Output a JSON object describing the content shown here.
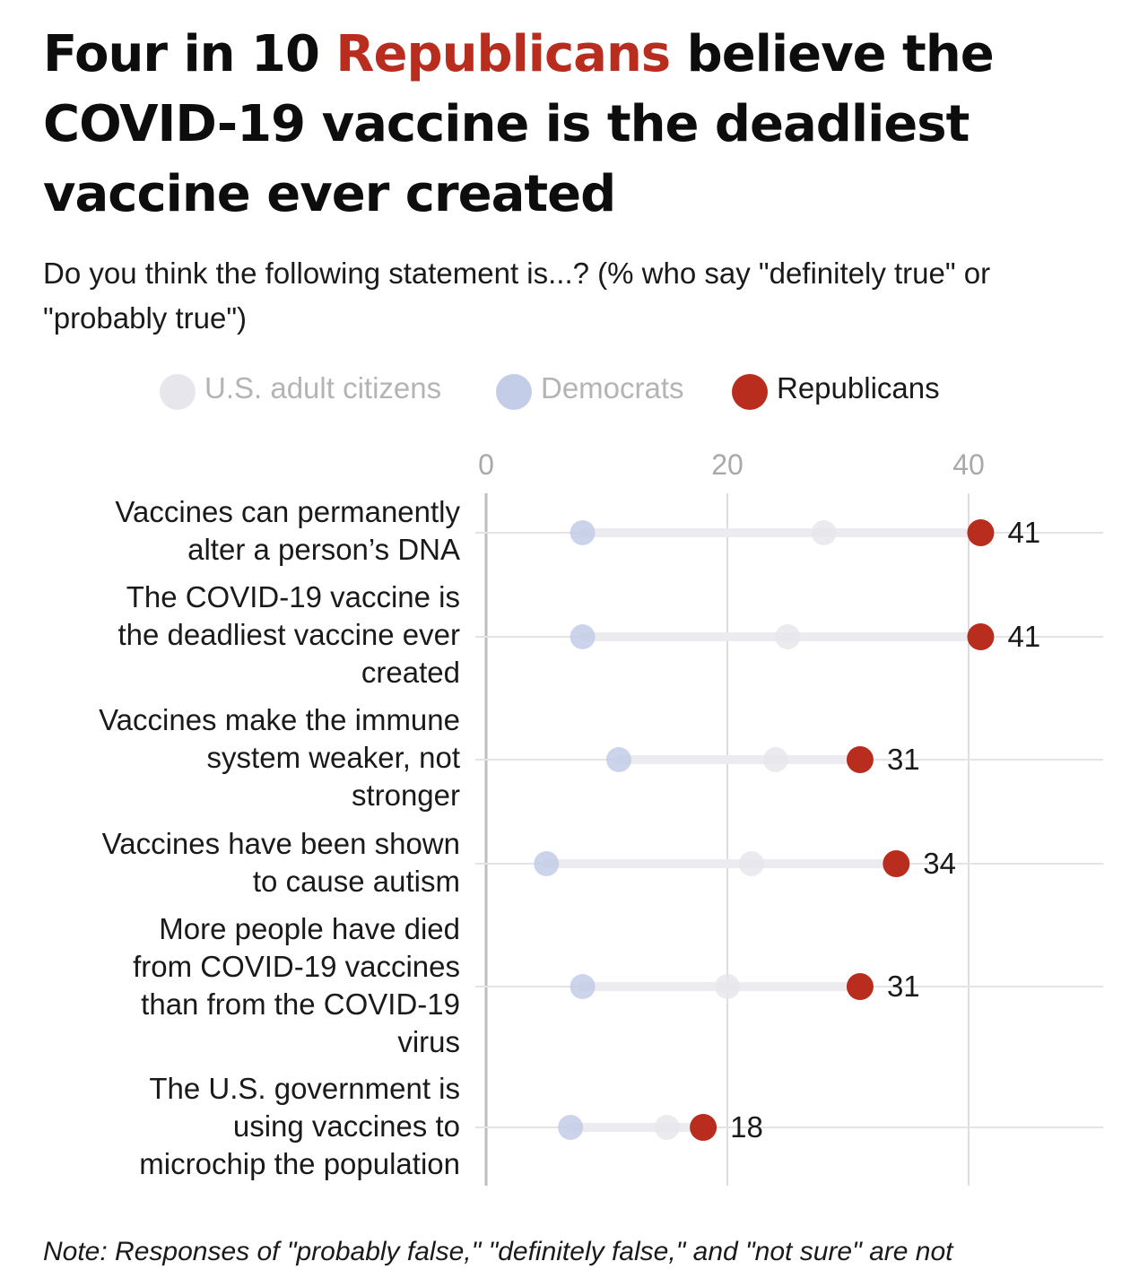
{
  "title": {
    "part1": "Four in 10 ",
    "highlight": "Republicans",
    "part2": " believe the COVID-19 vaccine is the deadliest vaccine ever created"
  },
  "subtitle": "Do you think the following statement is...? (% who say \"definitely true\" or \"probably true\")",
  "colors": {
    "title_highlight": "#b92d1f",
    "us_adult_citizens": "#e6e6ec",
    "democrats": "#c3cde8",
    "republicans": "#b92d1f",
    "grid": "#dddddd"
  },
  "legend": [
    {
      "label": "U.S. adult citizens",
      "color": "#e6e6ec",
      "text_color": "#b4b4b4"
    },
    {
      "label": "Democrats",
      "color": "#c3cde8",
      "text_color": "#b4b4b4"
    },
    {
      "label": "Republicans",
      "color": "#b92d1f",
      "text_color": "#1a1a1a"
    }
  ],
  "chart_data": {
    "type": "dot",
    "x_ticks": [
      "0",
      "20",
      "40"
    ],
    "xlim": [
      0,
      48
    ],
    "grid": true,
    "legend_position": "top",
    "categories": [
      "Vaccines can permanently alter a person’s DNA",
      "The COVID-19 vaccine is the deadliest vaccine ever created",
      "Vaccines make the immune system weaker, not stronger",
      "Vaccines have been shown to cause autism",
      "More people have died from COVID-19 vaccines than from the COVID-19 virus",
      "The U.S. government is using vaccines to microchip the population"
    ],
    "series": [
      {
        "name": "U.S. adult citizens",
        "values": [
          28,
          25,
          24,
          22,
          20,
          15
        ]
      },
      {
        "name": "Democrats",
        "values": [
          8,
          8,
          11,
          5,
          8,
          7
        ]
      },
      {
        "name": "Republicans",
        "values": [
          41,
          41,
          31,
          34,
          31,
          18
        ]
      }
    ],
    "data_labels": [
      "41",
      "41",
      "31",
      "34",
      "31",
      "18"
    ]
  },
  "category_lines": [
    [
      "Vaccines can permanently",
      "alter a person’s DNA"
    ],
    [
      "The COVID-19 vaccine is",
      "the deadliest vaccine ever",
      "created"
    ],
    [
      "Vaccines make the immune",
      "system weaker, not",
      "stronger"
    ],
    [
      "Vaccines have been shown",
      "to cause autism"
    ],
    [
      "More people have died",
      "from COVID-19 vaccines",
      "than from the COVID-19",
      "virus"
    ],
    [
      "The U.S. government is",
      "using vaccines to",
      "microchip the population"
    ]
  ],
  "note": "Note: Responses of \"probably false,\" \"definitely false,\" and \"not sure\" are not"
}
